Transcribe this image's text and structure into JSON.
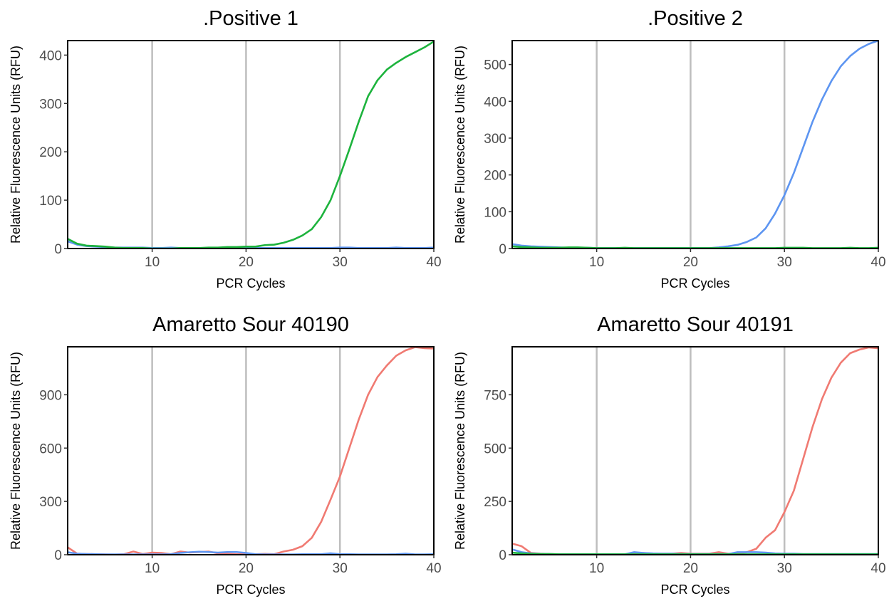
{
  "figure": {
    "colors": {
      "red": "#f07a72",
      "green": "#1db33d",
      "blue": "#5d95f1"
    }
  },
  "chart_data": [
    {
      "type": "line",
      "title": ".Positive 1",
      "xlabel": "PCR Cycles",
      "ylabel": "Relative Fluorescence Units (RFU)",
      "xlim": [
        1,
        40
      ],
      "ylim": [
        0,
        430
      ],
      "xticks": [
        10,
        20,
        30,
        40
      ],
      "yticks": [
        0,
        100,
        200,
        300,
        400
      ],
      "vlines": [
        10,
        20,
        30
      ],
      "grid": false,
      "series": [
        {
          "color": "#5d95f1",
          "x": [
            1,
            2,
            3,
            4,
            5,
            6,
            7,
            8,
            9,
            10,
            11,
            12,
            13,
            14,
            15,
            16,
            17,
            18,
            19,
            20,
            21,
            22,
            23,
            24,
            25,
            26,
            27,
            28,
            29,
            30,
            31,
            32,
            33,
            34,
            35,
            36,
            37,
            38,
            39,
            40
          ],
          "y": [
            15,
            8,
            5,
            4,
            3,
            2,
            2,
            2,
            2,
            1,
            1,
            2,
            1,
            1,
            1,
            1,
            1,
            1,
            1,
            1,
            1,
            1,
            1,
            1,
            1,
            1,
            1,
            1,
            1,
            2,
            2,
            1,
            1,
            1,
            1,
            2,
            1,
            1,
            1,
            2
          ]
        },
        {
          "color": "#1db33d",
          "x": [
            1,
            2,
            3,
            4,
            5,
            6,
            7,
            8,
            9,
            10,
            11,
            12,
            13,
            14,
            15,
            16,
            17,
            18,
            19,
            20,
            21,
            22,
            23,
            24,
            25,
            26,
            27,
            28,
            29,
            30,
            31,
            32,
            33,
            34,
            35,
            36,
            37,
            38,
            39,
            40
          ],
          "y": [
            20,
            10,
            6,
            5,
            4,
            2,
            1,
            1,
            1,
            0,
            0,
            0,
            1,
            1,
            1,
            2,
            2,
            3,
            3,
            4,
            4,
            7,
            8,
            12,
            18,
            27,
            40,
            65,
            100,
            150,
            205,
            262,
            315,
            348,
            370,
            384,
            396,
            406,
            416,
            428
          ]
        }
      ]
    },
    {
      "type": "line",
      "title": ".Positive 2",
      "xlabel": "PCR Cycles",
      "ylabel": "Relative Fluorescence Units (RFU)",
      "xlim": [
        1,
        40
      ],
      "ylim": [
        0,
        565
      ],
      "xticks": [
        10,
        20,
        30,
        40
      ],
      "yticks": [
        0,
        100,
        200,
        300,
        400,
        500
      ],
      "vlines": [
        10,
        20,
        30
      ],
      "grid": false,
      "series": [
        {
          "color": "#5d95f1",
          "x": [
            1,
            2,
            3,
            4,
            5,
            6,
            7,
            8,
            9,
            10,
            11,
            12,
            13,
            14,
            15,
            16,
            17,
            18,
            19,
            20,
            21,
            22,
            23,
            24,
            25,
            26,
            27,
            28,
            29,
            30,
            31,
            32,
            33,
            34,
            35,
            36,
            37,
            38,
            39,
            40
          ],
          "y": [
            12,
            8,
            6,
            5,
            4,
            3,
            2,
            2,
            2,
            1,
            1,
            1,
            1,
            1,
            1,
            1,
            1,
            1,
            1,
            1,
            1,
            1,
            3,
            6,
            10,
            18,
            30,
            55,
            95,
            145,
            205,
            275,
            345,
            405,
            455,
            495,
            523,
            543,
            556,
            565
          ]
        },
        {
          "color": "#1db33d",
          "x": [
            1,
            2,
            3,
            4,
            5,
            6,
            7,
            8,
            9,
            10,
            11,
            12,
            13,
            14,
            15,
            16,
            17,
            18,
            19,
            20,
            21,
            22,
            23,
            24,
            25,
            26,
            27,
            28,
            29,
            30,
            31,
            32,
            33,
            34,
            35,
            36,
            37,
            38,
            39,
            40
          ],
          "y": [
            6,
            4,
            3,
            2,
            2,
            2,
            3,
            3,
            2,
            1,
            1,
            1,
            2,
            1,
            1,
            1,
            1,
            1,
            1,
            1,
            1,
            1,
            1,
            1,
            1,
            1,
            1,
            1,
            1,
            2,
            2,
            2,
            1,
            1,
            1,
            1,
            2,
            1,
            1,
            2
          ]
        }
      ]
    },
    {
      "type": "line",
      "title": "Amaretto Sour 40190",
      "xlabel": "PCR Cycles",
      "ylabel": "Relative Fluorescence Units (RFU)",
      "xlim": [
        1,
        40
      ],
      "ylim": [
        0,
        1170
      ],
      "xticks": [
        10,
        20,
        30,
        40
      ],
      "yticks": [
        0,
        300,
        600,
        900
      ],
      "vlines": [
        10,
        20,
        30
      ],
      "grid": false,
      "series": [
        {
          "color": "#f07a72",
          "x": [
            1,
            2,
            3,
            4,
            5,
            6,
            7,
            8,
            9,
            10,
            11,
            12,
            13,
            14,
            15,
            16,
            17,
            18,
            19,
            20,
            21,
            22,
            23,
            24,
            25,
            26,
            27,
            28,
            29,
            30,
            31,
            32,
            33,
            34,
            35,
            36,
            37,
            38,
            39,
            40
          ],
          "y": [
            42,
            6,
            4,
            3,
            2,
            1,
            3,
            18,
            4,
            12,
            10,
            3,
            18,
            12,
            15,
            18,
            8,
            5,
            3,
            3,
            3,
            5,
            3,
            18,
            28,
            48,
            95,
            185,
            310,
            440,
            600,
            760,
            900,
            1000,
            1065,
            1120,
            1150,
            1168,
            1162,
            1160
          ]
        },
        {
          "color": "#5d95f1",
          "x": [
            1,
            2,
            3,
            4,
            5,
            6,
            7,
            8,
            9,
            10,
            11,
            12,
            13,
            14,
            15,
            16,
            17,
            18,
            19,
            20,
            21,
            22,
            23,
            24,
            25,
            26,
            27,
            28,
            29,
            30,
            31,
            32,
            33,
            34,
            35,
            36,
            37,
            38,
            39,
            40
          ],
          "y": [
            14,
            6,
            4,
            3,
            2,
            2,
            2,
            2,
            2,
            2,
            2,
            3,
            10,
            14,
            17,
            15,
            12,
            15,
            15,
            10,
            3,
            2,
            2,
            2,
            2,
            3,
            3,
            3,
            8,
            3,
            3,
            2,
            2,
            2,
            2,
            3,
            6,
            2,
            2,
            3
          ]
        }
      ]
    },
    {
      "type": "line",
      "title": "Amaretto Sour 40191",
      "xlabel": "PCR Cycles",
      "ylabel": "Relative Fluorescence Units (RFU)",
      "xlim": [
        1,
        40
      ],
      "ylim": [
        0,
        975
      ],
      "xticks": [
        10,
        20,
        30,
        40
      ],
      "yticks": [
        0,
        250,
        500,
        750
      ],
      "vlines": [
        10,
        20,
        30
      ],
      "grid": false,
      "series": [
        {
          "color": "#f07a72",
          "x": [
            1,
            2,
            3,
            4,
            5,
            6,
            7,
            8,
            9,
            10,
            11,
            12,
            13,
            14,
            15,
            16,
            17,
            18,
            19,
            20,
            21,
            22,
            23,
            24,
            25,
            26,
            27,
            28,
            29,
            30,
            31,
            32,
            33,
            34,
            35,
            36,
            37,
            38,
            39,
            40
          ],
          "y": [
            52,
            40,
            8,
            5,
            3,
            2,
            2,
            2,
            2,
            1,
            1,
            1,
            1,
            5,
            8,
            5,
            5,
            5,
            8,
            5,
            5,
            5,
            12,
            5,
            5,
            12,
            28,
            80,
            115,
            200,
            300,
            450,
            600,
            730,
            830,
            900,
            945,
            962,
            972,
            968
          ]
        },
        {
          "color": "#5d95f1",
          "x": [
            1,
            2,
            3,
            4,
            5,
            6,
            7,
            8,
            9,
            10,
            11,
            12,
            13,
            14,
            15,
            16,
            17,
            18,
            19,
            20,
            21,
            22,
            23,
            24,
            25,
            26,
            27,
            28,
            29,
            30,
            31,
            32,
            33,
            34,
            35,
            36,
            37,
            38,
            39,
            40
          ],
          "y": [
            25,
            12,
            6,
            4,
            3,
            2,
            2,
            2,
            2,
            2,
            2,
            2,
            2,
            12,
            8,
            6,
            5,
            5,
            3,
            3,
            3,
            3,
            3,
            3,
            12,
            12,
            12,
            10,
            6,
            5,
            5,
            3,
            3,
            3,
            3,
            3,
            3,
            3,
            3,
            3
          ]
        },
        {
          "color": "#1db33d",
          "x": [
            1,
            2,
            3,
            4,
            5,
            6,
            7,
            8,
            9,
            10,
            11,
            12,
            13,
            14,
            15,
            16,
            17,
            18,
            19,
            20,
            21,
            22,
            23,
            24,
            25,
            26,
            27,
            28,
            29,
            30,
            31,
            32,
            33,
            34,
            35,
            36,
            37,
            38,
            39,
            40
          ],
          "y": [
            10,
            6,
            4,
            3,
            3,
            2,
            2,
            2,
            2,
            2,
            2,
            2,
            2,
            2,
            2,
            2,
            2,
            2,
            2,
            2,
            2,
            2,
            2,
            2,
            2,
            2,
            2,
            2,
            2,
            2,
            2,
            2,
            2,
            2,
            2,
            2,
            2,
            2,
            2,
            2
          ]
        }
      ]
    }
  ]
}
